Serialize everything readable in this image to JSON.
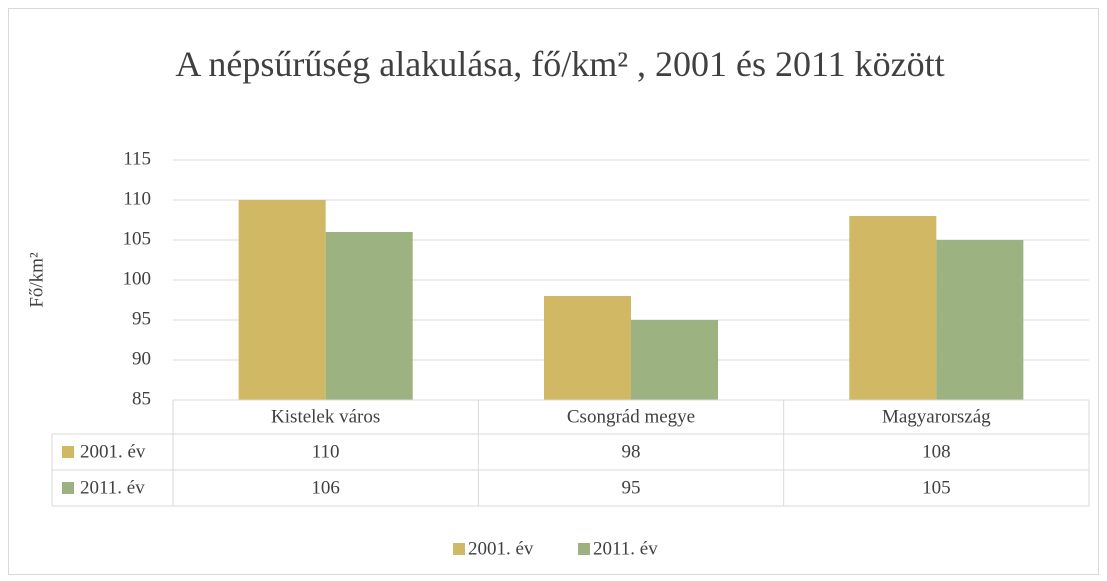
{
  "chart_data": {
    "type": "bar",
    "title": "A népsűrűség alakulása, fő/km² , 2001 és 2011 között",
    "y_label": "Fő/km²",
    "categories": [
      "Kistelek város",
      "Csongrád megye",
      "Magyarország"
    ],
    "series": [
      {
        "name": "2001. év",
        "color": "#d0b865",
        "values": [
          110,
          98,
          108
        ]
      },
      {
        "name": "2011. év",
        "color": "#9db281",
        "values": [
          106,
          95,
          105
        ]
      }
    ],
    "ylim": [
      85,
      115
    ],
    "yticks": [
      85,
      90,
      95,
      100,
      105,
      110,
      115
    ],
    "grid": true,
    "data_table": true,
    "legend": "bottom"
  }
}
